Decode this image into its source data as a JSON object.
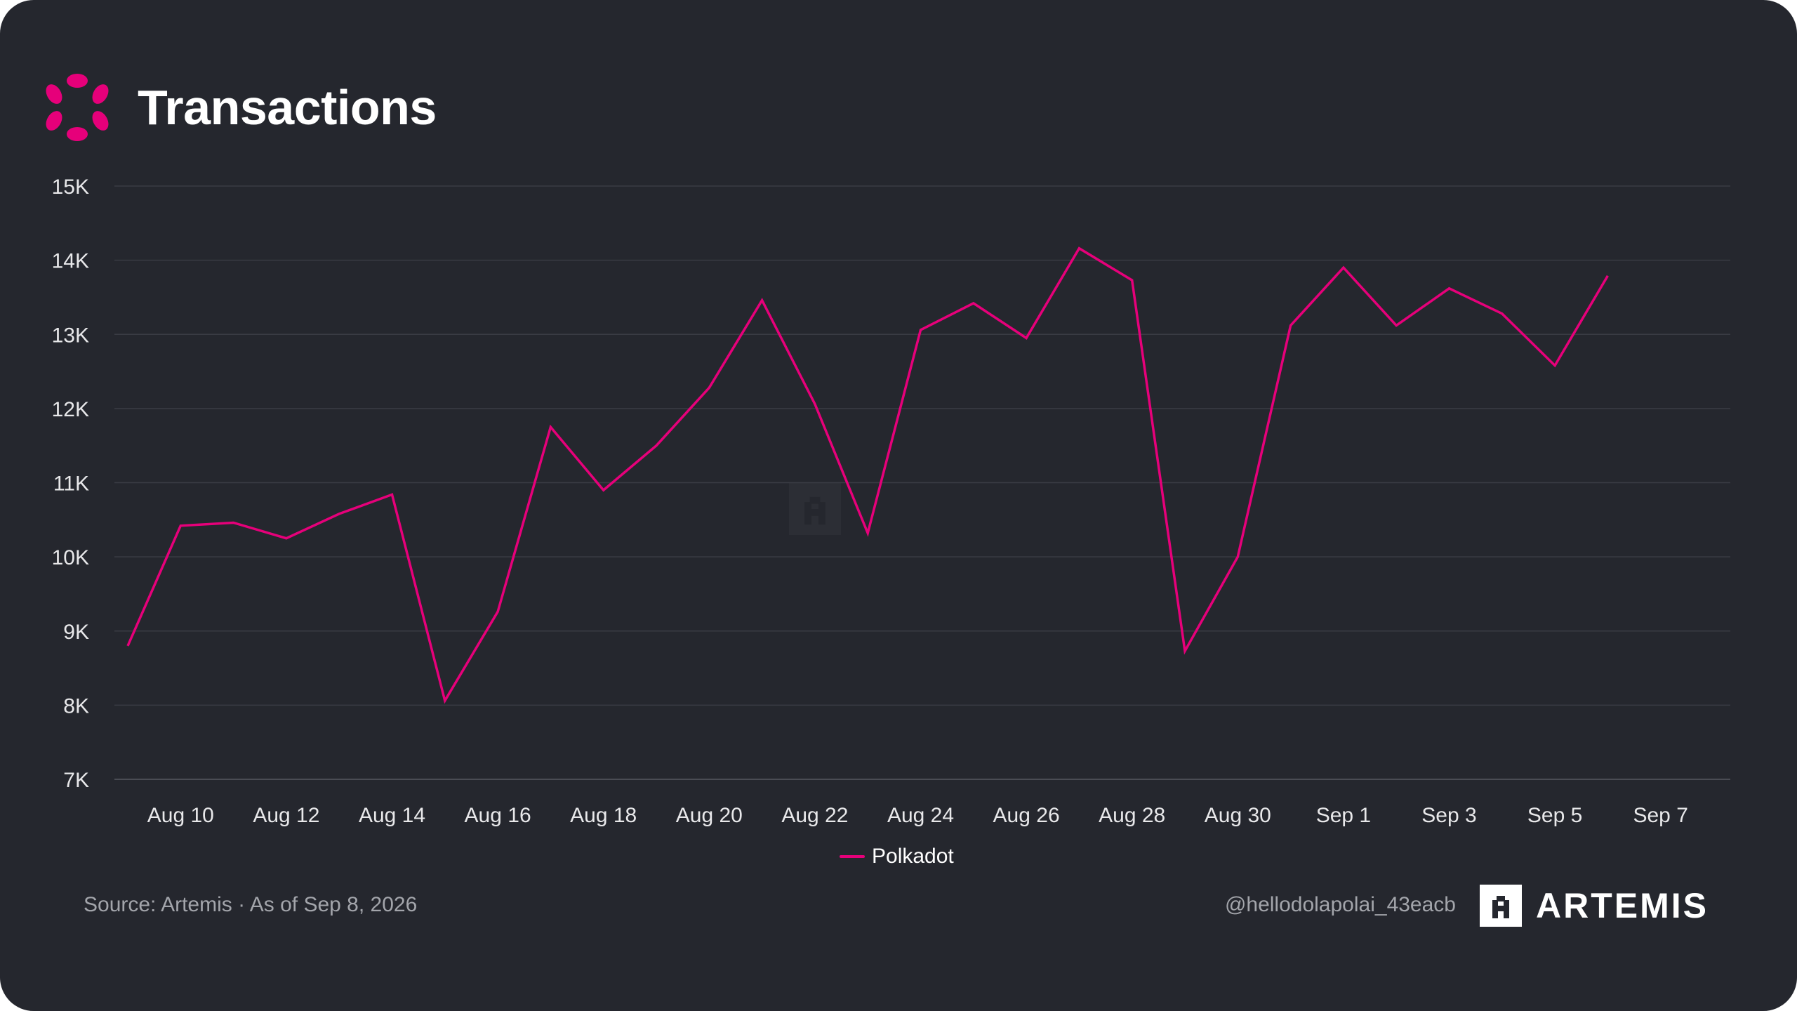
{
  "header": {
    "title": "Transactions",
    "logo_icon": "polkadot-logo-icon"
  },
  "footer": {
    "source": "Source: Artemis · As of Sep 8, 2026",
    "handle": "@hellodolapolai_43eacb",
    "brand": "ARTEMIS",
    "brand_icon": "artemis-logo-icon"
  },
  "colors": {
    "background": "#25272e",
    "accent": "#e6007a",
    "gridline": "#3a3c44"
  },
  "chart_data": {
    "type": "line",
    "title": "Transactions",
    "xlabel": "",
    "ylabel": "",
    "ylim": [
      7000,
      15000
    ],
    "yticks": [
      7000,
      8000,
      9000,
      10000,
      11000,
      12000,
      13000,
      14000,
      15000
    ],
    "ytick_labels": [
      "7K",
      "8K",
      "9K",
      "10K",
      "11K",
      "12K",
      "13K",
      "14K",
      "15K"
    ],
    "xtick_labels": [
      "Aug 10",
      "Aug 12",
      "Aug 14",
      "Aug 16",
      "Aug 18",
      "Aug 20",
      "Aug 22",
      "Aug 24",
      "Aug 26",
      "Aug 28",
      "Aug 30",
      "Sep 1",
      "Sep 3",
      "Sep 5",
      "Sep 7"
    ],
    "grid": true,
    "legend_position": "bottom-center",
    "x": [
      "Aug 9",
      "Aug 10",
      "Aug 11",
      "Aug 12",
      "Aug 13",
      "Aug 14",
      "Aug 15",
      "Aug 16",
      "Aug 17",
      "Aug 18",
      "Aug 19",
      "Aug 20",
      "Aug 21",
      "Aug 22",
      "Aug 23",
      "Aug 24",
      "Aug 25",
      "Aug 26",
      "Aug 27",
      "Aug 28",
      "Aug 29",
      "Aug 30",
      "Aug 31",
      "Sep 1",
      "Sep 2",
      "Sep 3",
      "Sep 4",
      "Sep 5",
      "Sep 6"
    ],
    "series": [
      {
        "name": "Polkadot",
        "color": "#e6007a",
        "values": [
          8800,
          10420,
          10460,
          10250,
          10580,
          10840,
          8060,
          9260,
          11750,
          10900,
          11500,
          12280,
          13460,
          12060,
          10320,
          13060,
          13420,
          12950,
          14160,
          13730,
          8730,
          10000,
          13120,
          13900,
          13120,
          13620,
          13280,
          12580,
          13790
        ]
      }
    ]
  }
}
